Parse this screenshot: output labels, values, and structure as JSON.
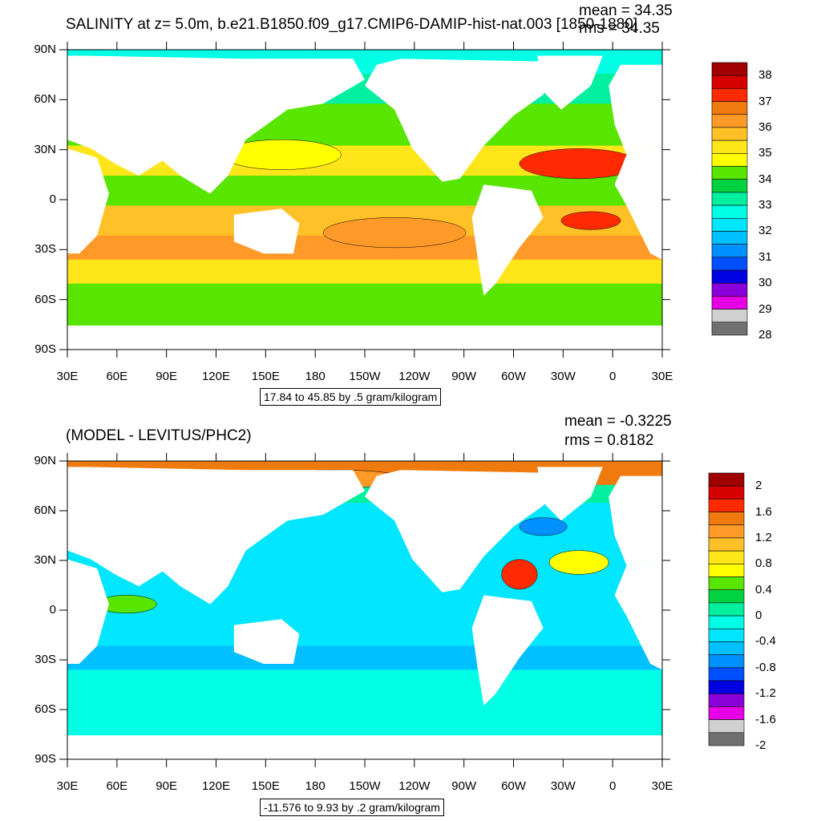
{
  "panel1": {
    "title": "SALINITY at z=   5.0m, b.e21.B1850.f09_g17.CMIP6-DAMIP-hist-nat.003 [1850-1880]",
    "mean": "mean = 34.35",
    "rms": "rms = 34.35",
    "contour_info": "17.84 to 45.85 by .5 gram/kilogram",
    "colorbar_labels": [
      "38",
      "37",
      "36",
      "35",
      "34",
      "33",
      "32",
      "31",
      "30",
      "29",
      "28"
    ],
    "colorbar_colors": [
      "#a00000",
      "#d70000",
      "#ff2a00",
      "#ef7a0d",
      "#ff9a28",
      "#ffc127",
      "#ffe61a",
      "#ffff00",
      "#58e500",
      "#00d240",
      "#00f0a0",
      "#00ffe5",
      "#00e6ff",
      "#00c0ff",
      "#0090ff",
      "#0050ff",
      "#0000e0",
      "#8a00d8",
      "#e600e6",
      "#d0d0d0",
      "#707070"
    ]
  },
  "panel2": {
    "title": "(MODEL - LEVITUS/PHC2)",
    "mean": "mean = -0.3225",
    "rms": "rms = 0.8182",
    "contour_info": "-11.576 to 9.93 by .2 gram/kilogram",
    "colorbar_labels": [
      "2",
      "1.6",
      "1.2",
      "0.8",
      "0.4",
      "0",
      "-0.4",
      "-0.8",
      "-1.2",
      "-1.6",
      "-2"
    ],
    "colorbar_colors": [
      "#a00000",
      "#d70000",
      "#ff2a00",
      "#ef7a0d",
      "#ff9a28",
      "#ffc127",
      "#ffe61a",
      "#ffff00",
      "#58e500",
      "#00d240",
      "#00f0a0",
      "#00ffe5",
      "#00e6ff",
      "#00c0ff",
      "#0090ff",
      "#0050ff",
      "#0000e0",
      "#8a00d8",
      "#e600e6",
      "#d0d0d0",
      "#707070"
    ]
  },
  "axes": {
    "lon_labels": [
      "30E",
      "60E",
      "90E",
      "120E",
      "150E",
      "180",
      "150W",
      "120W",
      "90W",
      "60W",
      "30W",
      "0",
      "30E"
    ],
    "lat_labels": [
      "90N",
      "60N",
      "30N",
      "0",
      "30S",
      "60S",
      "90S"
    ]
  }
}
